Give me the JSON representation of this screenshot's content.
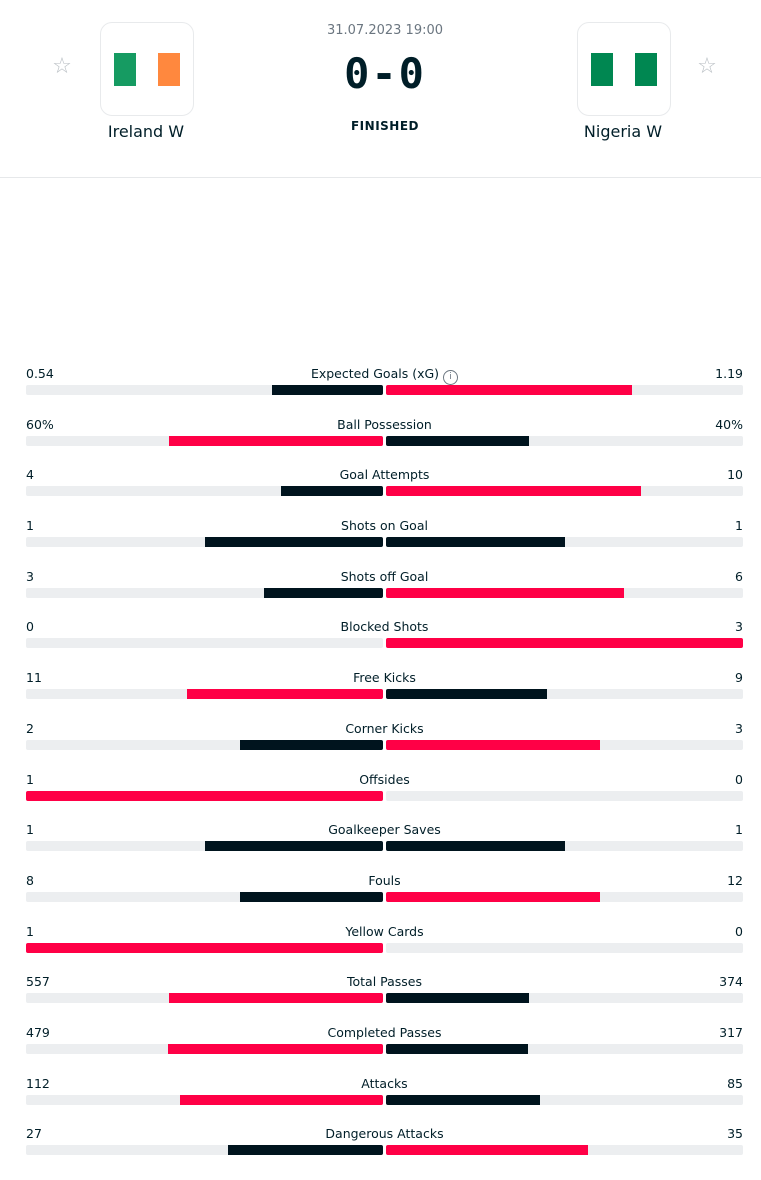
{
  "match": {
    "datetime": "31.07.2023 19:00",
    "score": "0-0",
    "status": "FINISHED",
    "home": {
      "name": "Ireland W",
      "flag_colors": [
        "#169b62",
        "#ffffff",
        "#ff883e"
      ]
    },
    "away": {
      "name": "Nigeria W",
      "flag_colors": [
        "#008751",
        "#ffffff",
        "#008751"
      ]
    },
    "favorite_icon": "star-icon"
  },
  "colors": {
    "lead": "#ff0046",
    "trail": "#00141e",
    "track": "#eceef0"
  },
  "stats": [
    {
      "label": "Expected Goals (xG)",
      "home": "0.54",
      "away": "1.19",
      "home_value": 0.54,
      "away_value": 1.19,
      "info": true
    },
    {
      "label": "Ball Possession",
      "home": "60%",
      "away": "40%",
      "home_value": 60,
      "away_value": 40
    },
    {
      "label": "Goal Attempts",
      "home": "4",
      "away": "10",
      "home_value": 4,
      "away_value": 10
    },
    {
      "label": "Shots on Goal",
      "home": "1",
      "away": "1",
      "home_value": 1,
      "away_value": 1
    },
    {
      "label": "Shots off Goal",
      "home": "3",
      "away": "6",
      "home_value": 3,
      "away_value": 6
    },
    {
      "label": "Blocked Shots",
      "home": "0",
      "away": "3",
      "home_value": 0,
      "away_value": 3
    },
    {
      "label": "Free Kicks",
      "home": "11",
      "away": "9",
      "home_value": 11,
      "away_value": 9
    },
    {
      "label": "Corner Kicks",
      "home": "2",
      "away": "3",
      "home_value": 2,
      "away_value": 3
    },
    {
      "label": "Offsides",
      "home": "1",
      "away": "0",
      "home_value": 1,
      "away_value": 0
    },
    {
      "label": "Goalkeeper Saves",
      "home": "1",
      "away": "1",
      "home_value": 1,
      "away_value": 1
    },
    {
      "label": "Fouls",
      "home": "8",
      "away": "12",
      "home_value": 8,
      "away_value": 12
    },
    {
      "label": "Yellow Cards",
      "home": "1",
      "away": "0",
      "home_value": 1,
      "away_value": 0
    },
    {
      "label": "Total Passes",
      "home": "557",
      "away": "374",
      "home_value": 557,
      "away_value": 374
    },
    {
      "label": "Completed Passes",
      "home": "479",
      "away": "317",
      "home_value": 479,
      "away_value": 317
    },
    {
      "label": "Attacks",
      "home": "112",
      "away": "85",
      "home_value": 112,
      "away_value": 85
    },
    {
      "label": "Dangerous Attacks",
      "home": "27",
      "away": "35",
      "home_value": 27,
      "away_value": 35
    }
  ]
}
